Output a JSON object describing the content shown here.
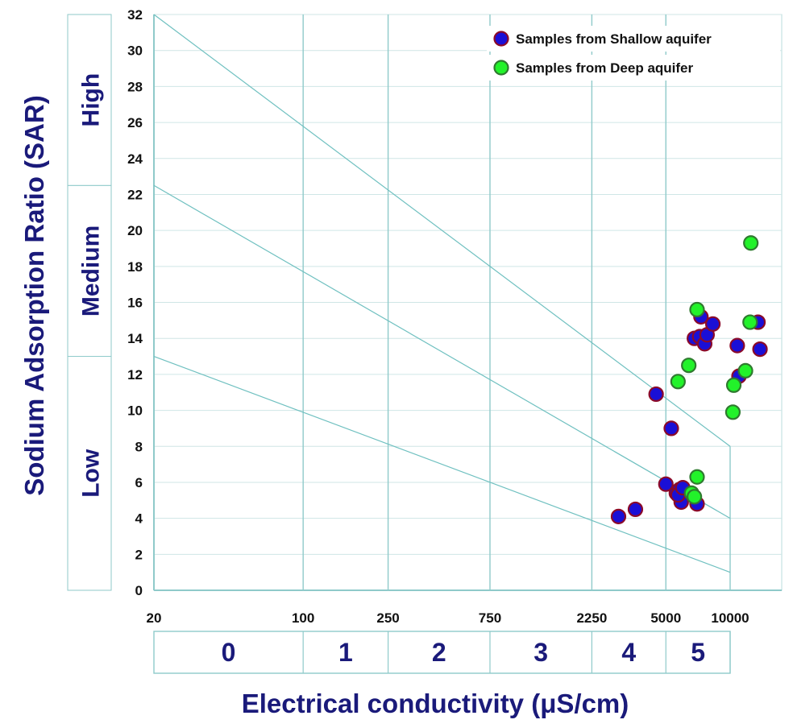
{
  "chart_data": {
    "type": "scatter",
    "ylabel": "Sodium Adsorption Ratio (SAR)",
    "xlabel": "Electrical conductivity (μS/cm)",
    "x_scale": "log",
    "xlim": [
      20,
      15000
    ],
    "ylim": [
      0,
      32
    ],
    "x_ticks": [
      20,
      100,
      250,
      750,
      2250,
      5000,
      10000
    ],
    "y_ticks": [
      0,
      2,
      4,
      6,
      8,
      10,
      12,
      14,
      16,
      18,
      20,
      22,
      24,
      26,
      28,
      30,
      32
    ],
    "grid": true,
    "legend_position": "top-right",
    "sar_bands": [
      {
        "label": "Low",
        "from": 0,
        "to": 13
      },
      {
        "label": "Medium",
        "from": 13,
        "to": 22.5
      },
      {
        "label": "High",
        "from": 22.5,
        "to": 32
      }
    ],
    "salinity_classes": [
      {
        "label": "0",
        "from": 20,
        "to": 100
      },
      {
        "label": "1",
        "from": 100,
        "to": 250
      },
      {
        "label": "2",
        "from": 250,
        "to": 750
      },
      {
        "label": "3",
        "from": 750,
        "to": 2250
      },
      {
        "label": "4",
        "from": 2250,
        "to": 5000
      },
      {
        "label": "5",
        "from": 5000,
        "to": 10000
      }
    ],
    "boundary_lines": [
      [
        [
          20,
          13
        ],
        [
          10000,
          1
        ]
      ],
      [
        [
          20,
          22.5
        ],
        [
          10000,
          4
        ]
      ],
      [
        [
          20,
          32
        ],
        [
          10000,
          8
        ]
      ]
    ],
    "series": [
      {
        "name": "Samples from Shallow aquifer",
        "color": "#1a0fd6",
        "edge": "#8b0a2a",
        "points": [
          [
            3000,
            4.1
          ],
          [
            3600,
            4.5
          ],
          [
            4500,
            10.9
          ],
          [
            5000,
            5.9
          ],
          [
            5300,
            9.0
          ],
          [
            5600,
            5.4
          ],
          [
            5800,
            5.6
          ],
          [
            5900,
            4.9
          ],
          [
            5700,
            5.3
          ],
          [
            6000,
            5.7
          ],
          [
            6800,
            14.0
          ],
          [
            7000,
            4.8
          ],
          [
            7200,
            14.1
          ],
          [
            7300,
            15.2
          ],
          [
            7600,
            13.7
          ],
          [
            7800,
            14.2
          ],
          [
            8300,
            14.8
          ],
          [
            10800,
            13.6
          ],
          [
            11000,
            11.9
          ],
          [
            13500,
            14.9
          ],
          [
            13800,
            13.4
          ]
        ]
      },
      {
        "name": "Samples from Deep aquifer",
        "color": "#22f22a",
        "edge": "#2f7a2f",
        "points": [
          [
            5700,
            11.6
          ],
          [
            6400,
            12.5
          ],
          [
            6600,
            5.4
          ],
          [
            6800,
            5.2
          ],
          [
            7000,
            6.3
          ],
          [
            7000,
            15.6
          ],
          [
            10300,
            9.9
          ],
          [
            10400,
            11.4
          ],
          [
            11800,
            12.2
          ],
          [
            12400,
            14.9
          ],
          [
            12500,
            19.3
          ]
        ]
      }
    ]
  }
}
